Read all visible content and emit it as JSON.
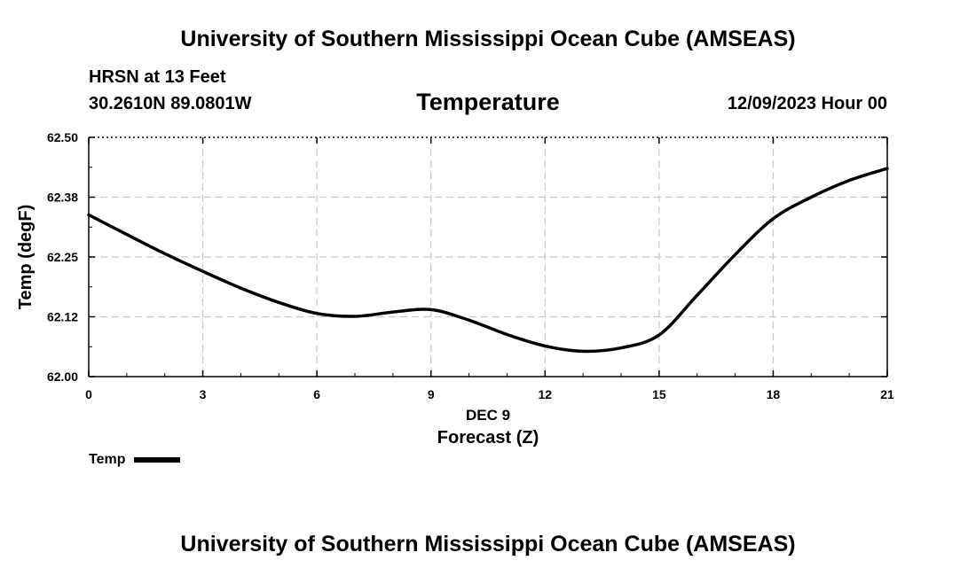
{
  "header": {
    "title": "University of Southern Mississippi Ocean Cube (AMSEAS)",
    "station": "HRSN at 13 Feet",
    "coordinates": "30.2610N  89.0801W",
    "valid_time": "12/09/2023 Hour 00"
  },
  "footer": {
    "title": "University of Southern Mississippi Ocean Cube (AMSEAS)"
  },
  "legend": {
    "label": "Temp"
  },
  "colors": {
    "line": "#000000",
    "grid": "#c8c8c8"
  },
  "chart_data": {
    "type": "line",
    "title": "Temperature",
    "xlabel": "Forecast (Z)",
    "xlabel_date": "DEC 9",
    "ylabel": "Temp (degF)",
    "xlim": [
      0,
      21
    ],
    "ylim": [
      62.0,
      62.5
    ],
    "xticks": [
      0,
      3,
      6,
      9,
      12,
      15,
      18,
      21
    ],
    "xtick_labels": [
      "0",
      "3",
      "6",
      "9",
      "12",
      "15",
      "18",
      "21"
    ],
    "yticks": [
      62.0,
      62.125,
      62.25,
      62.375,
      62.5
    ],
    "ytick_labels": [
      "62.00",
      "62.12",
      "62.25",
      "62.38",
      "62.50"
    ],
    "grid": true,
    "series": [
      {
        "name": "Temp",
        "x": [
          0,
          1,
          2,
          3,
          4,
          5,
          6,
          7,
          8,
          9,
          10,
          11,
          12,
          13,
          14,
          15,
          16,
          17,
          18,
          19,
          20,
          21
        ],
        "values": [
          62.338,
          62.297,
          62.257,
          62.22,
          62.185,
          62.155,
          62.132,
          62.126,
          62.135,
          62.14,
          62.118,
          62.088,
          62.064,
          62.053,
          62.06,
          62.087,
          62.17,
          62.255,
          62.33,
          62.375,
          62.41,
          62.435
        ]
      }
    ]
  }
}
